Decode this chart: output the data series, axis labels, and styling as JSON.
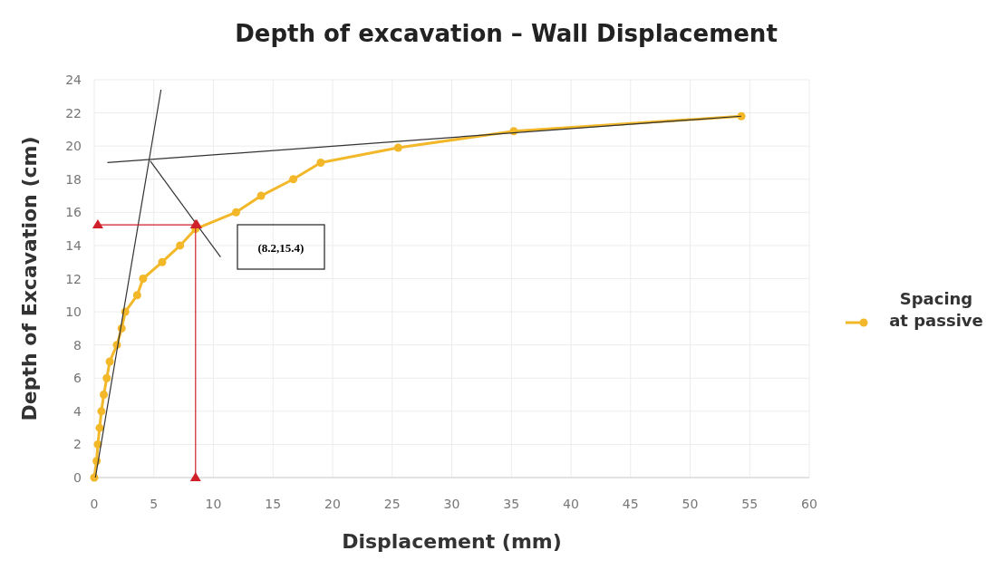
{
  "chart_data": {
    "type": "line",
    "title": "Depth of excavation – Wall Displacement",
    "xlabel": "Displacement (mm)",
    "ylabel": "Depth of Excavation (cm)",
    "xlim": [
      0,
      60
    ],
    "xticks": [
      0,
      5,
      10,
      15,
      20,
      25,
      30,
      35,
      40,
      45,
      50,
      55,
      60
    ],
    "ylim": [
      0,
      24
    ],
    "yticks": [
      0,
      2,
      4,
      6,
      8,
      10,
      12,
      14,
      16,
      18,
      20,
      22,
      24
    ],
    "grid": true,
    "legend": "right",
    "marker": "circle",
    "line_style": "solid",
    "annotations": [
      "(8.2,15.4)"
    ],
    "series": [
      {
        "name": "Spacing at passive",
        "color": "#f2b829",
        "x": [
          0,
          0.2,
          0.3,
          0.45,
          0.6,
          0.8,
          1.05,
          1.3,
          1.9,
          2.3,
          2.6,
          3.6,
          4.1,
          5.7,
          7.2,
          8.5,
          11.9,
          14.0,
          16.7,
          19.0,
          25.5,
          35.2,
          54.3
        ],
        "values": [
          0,
          1,
          2,
          3,
          4,
          5,
          6,
          7,
          8,
          9,
          10,
          11,
          12,
          13,
          14,
          15,
          16,
          17,
          18,
          19,
          19.9,
          20.9,
          21.8
        ]
      },
      {
        "color": "#333333",
        "marker": "none",
        "x": [
          0.1,
          5.6
        ],
        "values": [
          0,
          23.4
        ]
      },
      {
        "color": "#333333",
        "marker": "none",
        "x": [
          1.1,
          54.3
        ],
        "values": [
          19.0,
          21.8
        ]
      },
      {
        "color": "#333333",
        "marker": "none",
        "x": [
          4.7,
          10.6
        ],
        "values": [
          19.1,
          13.3
        ]
      },
      {
        "color": "#d0202a",
        "marker": "triangle",
        "x": [
          8.6,
          0.3
        ],
        "values": [
          15.25,
          15.25
        ]
      },
      {
        "color": "#d0202a",
        "marker": "triangle",
        "x": [
          8.5,
          8.5
        ],
        "values": [
          15.25,
          0
        ]
      }
    ]
  }
}
